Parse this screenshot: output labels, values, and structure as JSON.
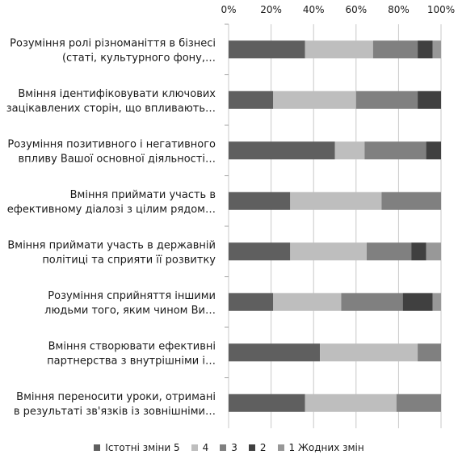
{
  "chart_data": {
    "type": "bar",
    "orientation": "horizontal",
    "stacked": "percent",
    "title": "",
    "xlabel": "",
    "ylabel": "",
    "xlim": [
      0,
      100
    ],
    "x_ticks": [
      "0%",
      "20%",
      "40%",
      "60%",
      "80%",
      "100%"
    ],
    "axis_position": "top",
    "grid": true,
    "legend_position": "bottom",
    "categories": [
      [
        "Розуміння ролі різноманіття в бізнесі",
        "(статі, культурного фону,…"
      ],
      [
        "Вміння ідентифіковувати ключових",
        "зацікавлених сторін, що впливають…"
      ],
      [
        "Розуміння позитивного і негативного",
        "впливу Вашої основної діяльності…"
      ],
      [
        "Вміння приймати участь в",
        "ефективному діалозі з цілим рядом…"
      ],
      [
        "Вміння приймати участь в державній",
        "політиці та сприяти її розвитку"
      ],
      [
        "Розуміння сприйняття іншими",
        "людьми того, яким чином Ви…"
      ],
      [
        "Вміння створювати ефективні",
        "партнерства з внутрішніми і…"
      ],
      [
        "Вміння переносити уроки, отримані",
        "в результаті зв'язків із зовнішніми…"
      ]
    ],
    "series": [
      {
        "name": "Істотні зміни 5",
        "color": "#5f5f5f",
        "values": [
          36,
          21,
          50,
          29,
          29,
          21,
          43,
          36
        ]
      },
      {
        "name": "4",
        "color": "#bebebe",
        "values": [
          32,
          39,
          14,
          43,
          36,
          32,
          46,
          43
        ]
      },
      {
        "name": "3",
        "color": "#808080",
        "values": [
          21,
          29,
          29,
          28,
          21,
          29,
          11,
          21
        ]
      },
      {
        "name": "2",
        "color": "#404040",
        "values": [
          7,
          11,
          7,
          0,
          7,
          14,
          0,
          0
        ]
      },
      {
        "name": "1 Жодних змін",
        "color": "#989898",
        "values": [
          4,
          0,
          0,
          0,
          7,
          4,
          0,
          0
        ]
      }
    ]
  }
}
